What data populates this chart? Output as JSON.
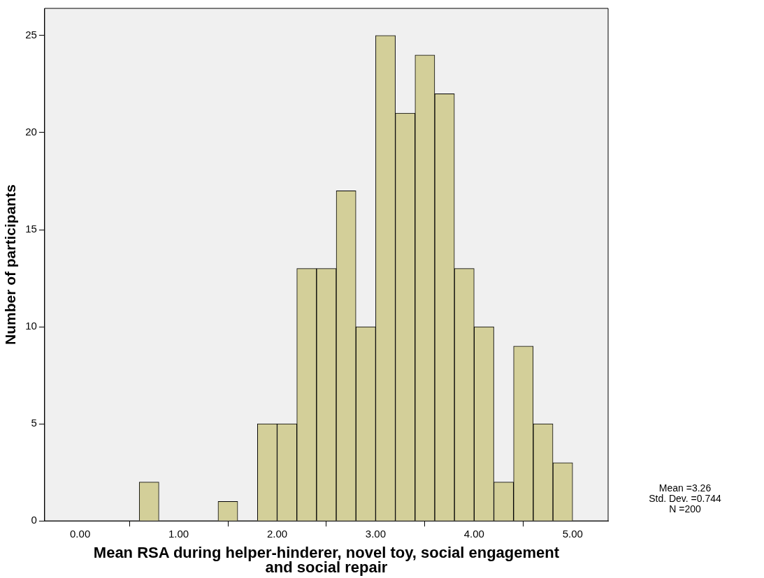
{
  "chart_data": {
    "type": "histogram",
    "bins": [
      0.6,
      0.8,
      1.0,
      1.2,
      1.4,
      1.6,
      1.8,
      2.0,
      2.2,
      2.4,
      2.6,
      2.8,
      3.0,
      3.2,
      3.4,
      3.6,
      3.8,
      4.0,
      4.2,
      4.4,
      4.6,
      4.8,
      5.0
    ],
    "values": [
      2,
      0,
      0,
      0,
      1,
      0,
      5,
      5,
      13,
      13,
      17,
      10,
      25,
      21,
      24,
      22,
      13,
      10,
      2,
      9,
      5,
      3
    ],
    "color": "#d3cf99",
    "xlabel": "Mean RSA during helper-hinderer, novel toy, social engagement and social repair",
    "ylabel": "Number of participants",
    "xlim": [
      -0.36,
      5.36
    ],
    "xticks": [
      {
        "value": 0,
        "label": "0.00"
      },
      {
        "value": 1,
        "label": "1.00"
      },
      {
        "value": 2,
        "label": "2.00"
      },
      {
        "value": 3,
        "label": "3.00"
      },
      {
        "value": 4,
        "label": "4.00"
      },
      {
        "value": 5,
        "label": "5.00"
      }
    ],
    "ylim": [
      0,
      26.4
    ],
    "yticks": [
      0,
      5,
      10,
      15,
      20,
      25
    ],
    "grid": false,
    "legend": false,
    "annotations": [
      "Mean =3.26",
      "Std. Dev. =0.744",
      "N =200"
    ]
  }
}
